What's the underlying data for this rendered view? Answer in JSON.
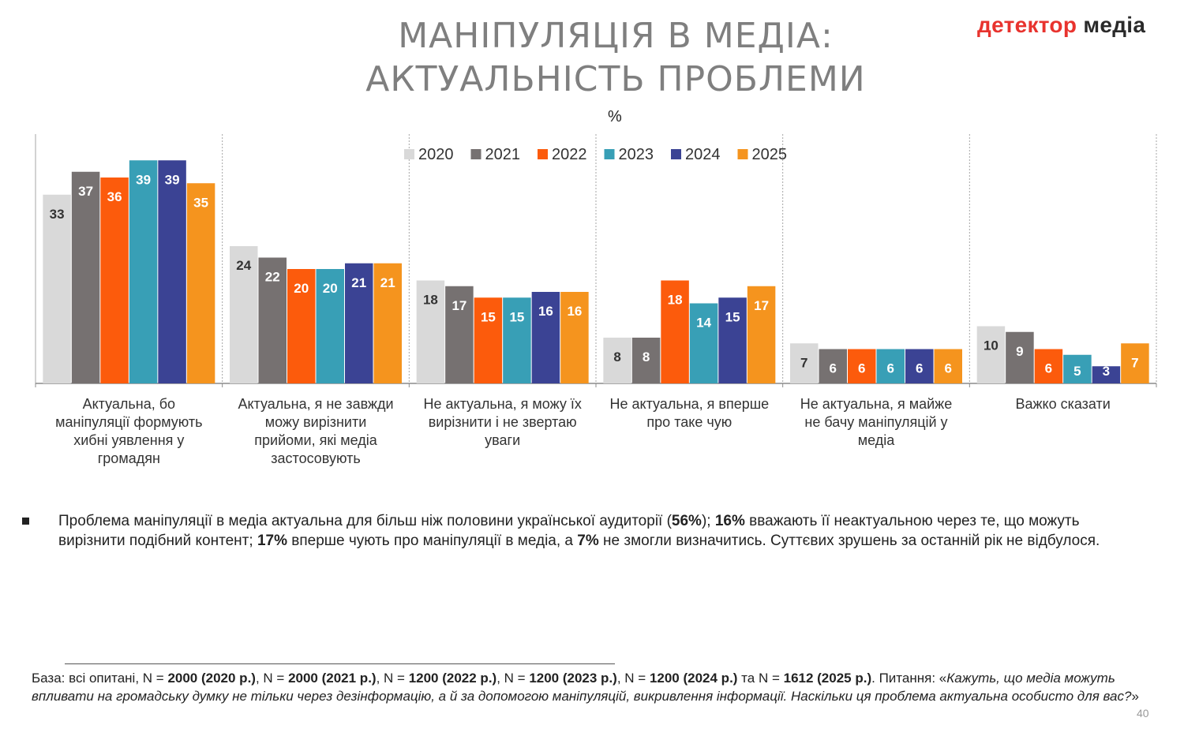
{
  "title_line1": "МАНІПУЛЯЦІЯ В МЕДІА:",
  "title_line2": "АКТУАЛЬНІСТЬ ПРОБЛЕМИ",
  "unit": "%",
  "logo": {
    "part1": "детектор",
    "part2": " медіа"
  },
  "colors": {
    "2020": "#d9d9d9",
    "2021": "#767171",
    "2022": "#fc5b0c",
    "2023": "#389fb6",
    "2024": "#3b4394",
    "2025": "#f5941e"
  },
  "chart_data": {
    "type": "bar",
    "categories": [
      "Актуальна, бо маніпуляції формують хибні уявлення у громадян",
      "Актуальна, я не завжди можу вирізнити прийоми, які медіа застосовують",
      "Не актуальна, я можу їх вирізнити і не звертаю уваги",
      "Не актуальна, я вперше про таке чую",
      "Не актуальна, я майже не бачу маніпуляцій у медіа",
      "Важко сказати"
    ],
    "category_lines": [
      [
        "Актуальна, бо",
        "маніпуляції формують",
        "хибні уявлення у",
        "громадян"
      ],
      [
        "Актуальна, я не завжди",
        "можу вирізнити",
        "прийоми, які медіа",
        "застосовують"
      ],
      [
        "Не актуальна, я можу їх",
        "вирізнити і не звертаю",
        "уваги"
      ],
      [
        "Не актуальна, я вперше",
        "про таке чую"
      ],
      [
        "Не актуальна, я майже",
        "не бачу маніпуляцій у",
        "медіа"
      ],
      [
        "Важко сказати"
      ]
    ],
    "series": [
      {
        "name": "2020",
        "values": [
          33,
          24,
          18,
          8,
          7,
          10
        ]
      },
      {
        "name": "2021",
        "values": [
          37,
          22,
          17,
          8,
          6,
          9
        ]
      },
      {
        "name": "2022",
        "values": [
          36,
          20,
          15,
          18,
          6,
          6
        ]
      },
      {
        "name": "2023",
        "values": [
          39,
          20,
          15,
          14,
          6,
          5
        ]
      },
      {
        "name": "2024",
        "values": [
          39,
          21,
          16,
          15,
          6,
          3
        ]
      },
      {
        "name": "2025",
        "values": [
          35,
          21,
          16,
          17,
          6,
          7
        ]
      }
    ],
    "ylim": [
      0,
      42
    ],
    "legend": "top"
  },
  "bullet": {
    "parts": [
      {
        "text": "Проблема маніпуляції в медіа актуальна для більш ніж половини української аудиторії (",
        "bold": false
      },
      {
        "text": "56%",
        "bold": true
      },
      {
        "text": "); ",
        "bold": false
      },
      {
        "text": "16%",
        "bold": true
      },
      {
        "text": " вважають її неактуальною через те, що можуть вирізнити подібний контент; ",
        "bold": false
      },
      {
        "text": "17%",
        "bold": true
      },
      {
        "text": " вперше чують про маніпуляції в медіа, а ",
        "bold": false
      },
      {
        "text": "7%",
        "bold": true
      },
      {
        "text": " не змогли визначитись. Суттєвих зрушень за останній рік не відбулося.",
        "bold": false
      }
    ]
  },
  "footnote": {
    "parts": [
      {
        "text": "База: всі опитані, N = ",
        "style": "normal"
      },
      {
        "text": "2000 (2020 р.)",
        "style": "bold"
      },
      {
        "text": ", N = ",
        "style": "normal"
      },
      {
        "text": "2000 (2021 р.)",
        "style": "bold"
      },
      {
        "text": ", N = ",
        "style": "normal"
      },
      {
        "text": "1200 (2022 р.)",
        "style": "bold"
      },
      {
        "text": ", N = ",
        "style": "normal"
      },
      {
        "text": "1200 (2023 р.)",
        "style": "bold"
      },
      {
        "text": ", N = ",
        "style": "normal"
      },
      {
        "text": "1200 (2024 р.)",
        "style": "bold"
      },
      {
        "text": " та N = ",
        "style": "normal"
      },
      {
        "text": "1612 (2025 р.)",
        "style": "bold"
      },
      {
        "text": ". Питання: «",
        "style": "normal"
      },
      {
        "text": "Кажуть, що медіа можуть впливати на громадську думку не тільки через дезінформацію, а й за допомогою маніпуляцій, викривлення інформації. Наскільки ця проблема актуальна особисто для вас?",
        "style": "italic"
      },
      {
        "text": "»",
        "style": "normal"
      }
    ]
  },
  "page_number": "40"
}
